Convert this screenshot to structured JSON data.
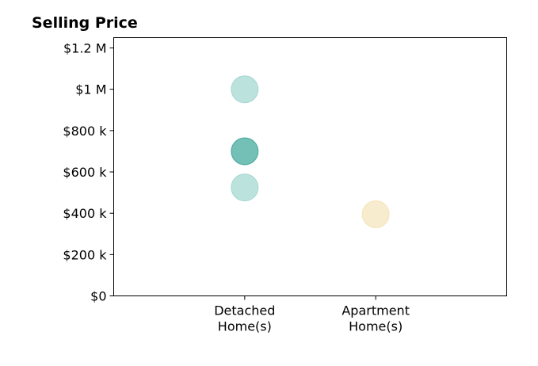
{
  "chart_data": {
    "type": "scatter",
    "title": "Selling Price",
    "xlabel": "",
    "ylabel": "",
    "categories": [
      "Detached\nHome(s)",
      "Apartment\nHome(s)"
    ],
    "x_category_slots": 3,
    "ylim": [
      0,
      1250000
    ],
    "y_ticks": [
      {
        "value": 0,
        "label": "$0"
      },
      {
        "value": 200000,
        "label": "$200 k"
      },
      {
        "value": 400000,
        "label": "$400 k"
      },
      {
        "value": 600000,
        "label": "$600 k"
      },
      {
        "value": 800000,
        "label": "$800 k"
      },
      {
        "value": 1000000,
        "label": "$1 M"
      },
      {
        "value": 1200000,
        "label": "$1.2 M"
      }
    ],
    "grid": false,
    "points": [
      {
        "category": "Detached\nHome(s)",
        "value": 1000000,
        "color": "#8fcfc8",
        "opacity": 0.6
      },
      {
        "category": "Detached\nHome(s)",
        "value": 700000,
        "color": "#2a9d8f",
        "opacity": 0.65
      },
      {
        "category": "Detached\nHome(s)",
        "value": 525000,
        "color": "#8fcfc8",
        "opacity": 0.6
      },
      {
        "category": "Apartment\nHome(s)",
        "value": 395000,
        "color": "#f2dca6",
        "opacity": 0.55
      }
    ]
  }
}
